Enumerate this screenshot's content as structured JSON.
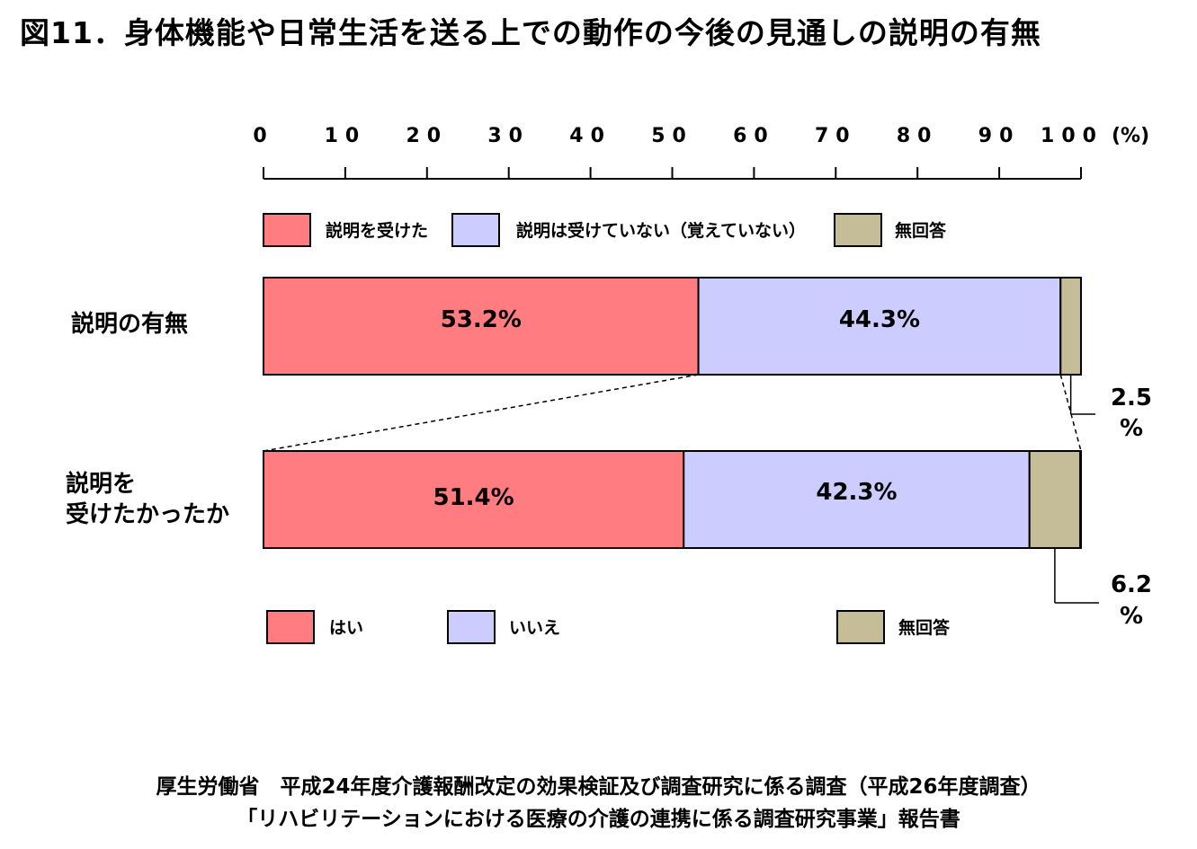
{
  "title": "図11．身体機能や日常生活を送る上での動作の今後の見通しの説明の有無",
  "source": {
    "line1": "厚生労働省　平成24年度介護報酬改定の効果検証及び調査研究に係る調査（平成26年度調査）",
    "line2": "「リハビリテーションにおける医療の介護の連携に係る調査研究事業」報告書"
  },
  "chart_data": [
    {
      "type": "bar",
      "orientation": "horizontal",
      "stacked": true,
      "category": "説明の有無",
      "xlim": [
        0,
        100
      ],
      "axis_ticks": [
        "0",
        "10",
        "20",
        "30",
        "40",
        "50",
        "60",
        "70",
        "80",
        "90",
        "100"
      ],
      "axis_unit": "(%)",
      "series": [
        {
          "name": "説明を受けた",
          "value": 53.2,
          "label": "53.2%",
          "color": "#FF7C80"
        },
        {
          "name": "説明は受けていない（覚えていない）",
          "value": 44.3,
          "label": "44.3%",
          "color": "#CCCCFF"
        },
        {
          "name": "無回答",
          "value": 2.5,
          "label": "2.5%",
          "color": "#C4BD97"
        }
      ],
      "legend_position": "top"
    },
    {
      "type": "bar",
      "orientation": "horizontal",
      "stacked": true,
      "category": "説明を\n受けたかったか",
      "category_lines": [
        "説明を",
        "受けたかったか"
      ],
      "xlim": [
        0,
        100
      ],
      "series": [
        {
          "name": "はい",
          "value": 51.4,
          "label": "51.4%",
          "color": "#FF7C80"
        },
        {
          "name": "いいえ",
          "value": 42.3,
          "label": "42.3%",
          "color": "#CCCCFF"
        },
        {
          "name": "無回答",
          "value": 6.2,
          "label": "6.2%",
          "color": "#C4BD97"
        }
      ],
      "legend_position": "bottom"
    }
  ]
}
